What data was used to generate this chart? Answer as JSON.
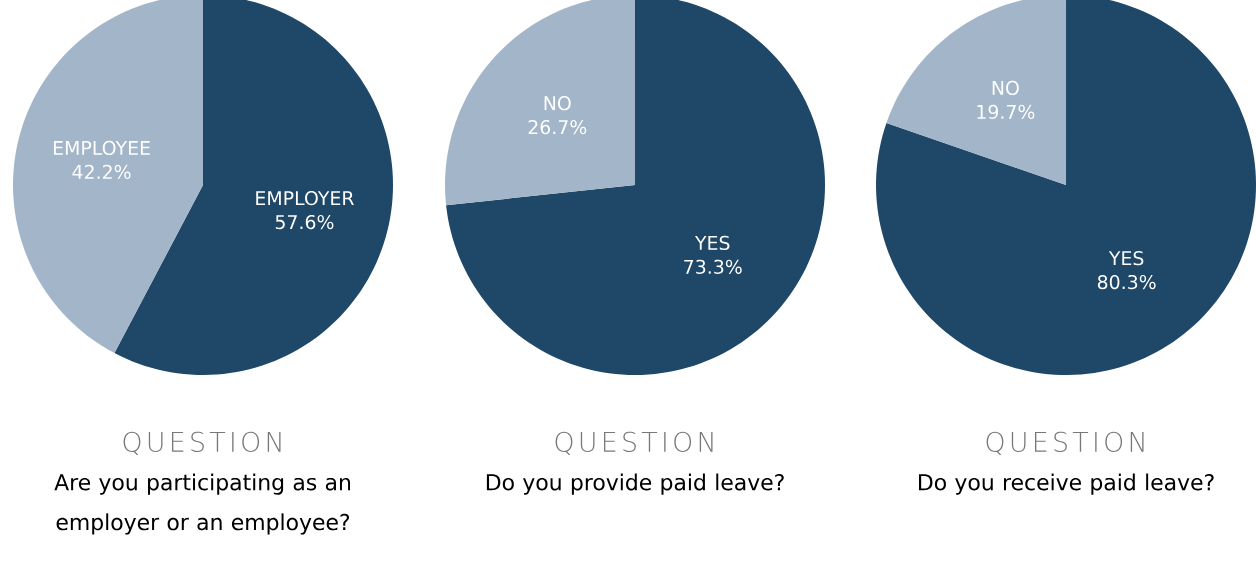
{
  "chart_data": [
    {
      "type": "pie",
      "title": "QUESTION",
      "subtitle": "Are you participating as an employer or an employee?",
      "categories": [
        "EMPLOYER",
        "EMPLOYEE"
      ],
      "values": [
        57.6,
        42.2
      ],
      "colors": [
        "#1f4868",
        "#a3b5c9"
      ],
      "value_labels": [
        "57.6%",
        "42.2%"
      ]
    },
    {
      "type": "pie",
      "title": "QUESTION",
      "subtitle": "Do you provide paid leave?",
      "categories": [
        "YES",
        "NO"
      ],
      "values": [
        73.3,
        26.7
      ],
      "colors": [
        "#1f4868",
        "#a3b5c9"
      ],
      "value_labels": [
        "73.3%",
        "26.7%"
      ]
    },
    {
      "type": "pie",
      "title": "QUESTION",
      "subtitle": "Do you receive paid leave?",
      "categories": [
        "YES",
        "NO"
      ],
      "values": [
        80.3,
        19.7
      ],
      "colors": [
        "#1f4868",
        "#a3b5c9"
      ],
      "value_labels": [
        "80.3%",
        "19.7%"
      ]
    }
  ]
}
